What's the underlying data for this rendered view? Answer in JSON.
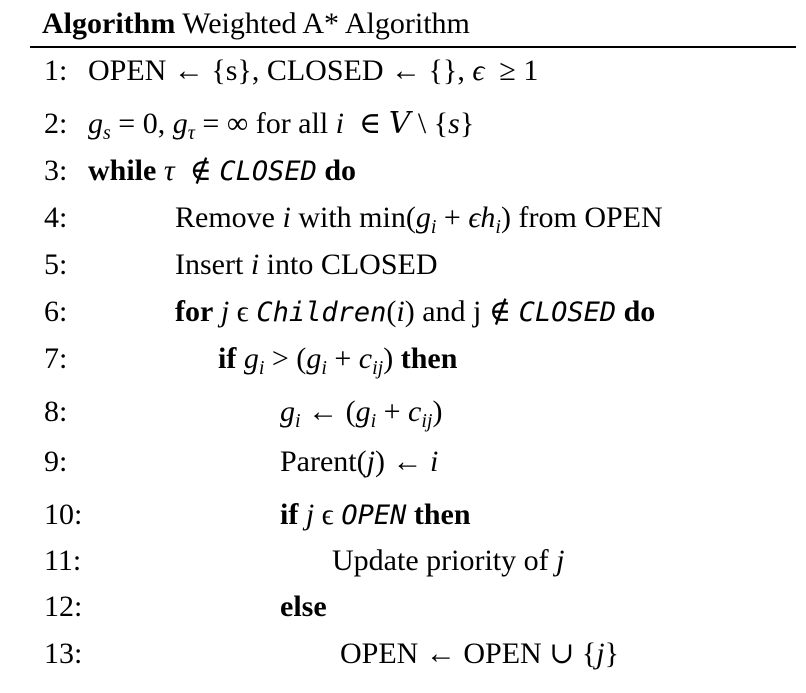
{
  "caption": {
    "keyword": "Algorithm",
    "title": "Weighted A* Algorithm"
  },
  "lines": [
    {
      "num": "1:"
    },
    {
      "num": "2:"
    },
    {
      "num": "3:"
    },
    {
      "num": "4:"
    },
    {
      "num": "5:"
    },
    {
      "num": "6:"
    },
    {
      "num": "7:"
    },
    {
      "num": "8:"
    },
    {
      "num": "9:"
    },
    {
      "num": "10:"
    },
    {
      "num": "11:"
    },
    {
      "num": "12:"
    },
    {
      "num": "13:"
    }
  ],
  "text": {
    "open": "OPEN",
    "closed_word": "CLOSED",
    "arrow": "←",
    "geq": "≥",
    "one": "1",
    "zero": "0",
    "infinity": "∞",
    "for_all": "for all",
    "kw_while": "while",
    "kw_do": "do",
    "kw_for": "for",
    "kw_and": "and",
    "kw_if": "if",
    "kw_then": "then",
    "kw_else": "else",
    "remove": "Remove",
    "with_min": "with min",
    "from": "from",
    "insert": "Insert",
    "into": "into",
    "parent": "Parent",
    "update_priority": "Update priority of",
    "children": "Children",
    "closed_math": "CLOSED",
    "open_math": "OPEN",
    "union": "∪"
  }
}
